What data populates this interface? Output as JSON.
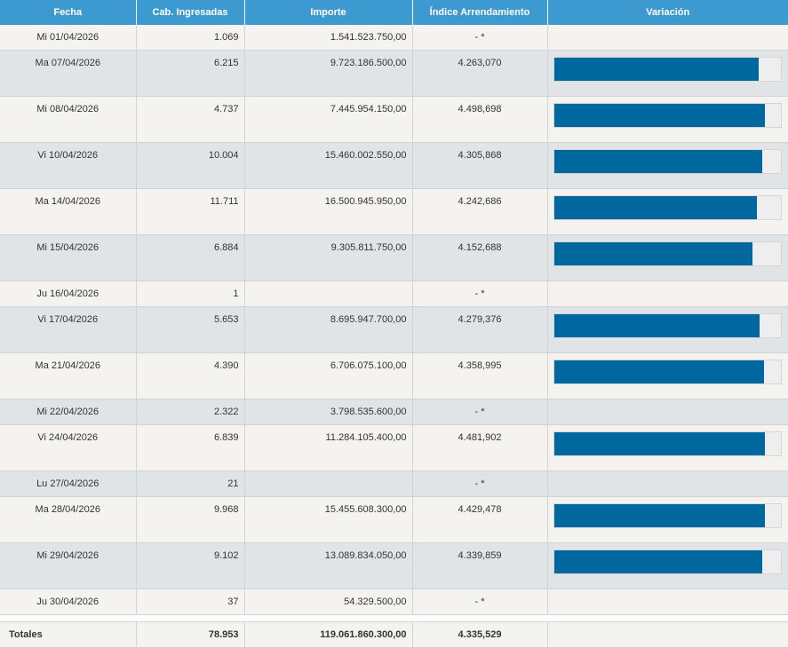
{
  "table": {
    "headers": [
      "Fecha",
      "Cab. Ingresadas",
      "Importe",
      "Índice Arrendamiento",
      "Variación"
    ],
    "rows": [
      {
        "fecha": "Mi 01/04/2026",
        "cabezas": "1.069",
        "importe": "1.541.523.750,00",
        "indice": "- *",
        "variacion_pct": null
      },
      {
        "fecha": "Ma 07/04/2026",
        "cabezas": "6.215",
        "importe": "9.723.186.500,00",
        "indice": "4.263,070",
        "variacion_pct": 90.5
      },
      {
        "fecha": "Mi 08/04/2026",
        "cabezas": "4.737",
        "importe": "7.445.954.150,00",
        "indice": "4.498,698",
        "variacion_pct": 93.3
      },
      {
        "fecha": "Vi 10/04/2026",
        "cabezas": "10.004",
        "importe": "15.460.002.550,00",
        "indice": "4.305,868",
        "variacion_pct": 91.8
      },
      {
        "fecha": "Ma 14/04/2026",
        "cabezas": "11.711",
        "importe": "16.500.945.950,00",
        "indice": "4.242,686",
        "variacion_pct": 89.8
      },
      {
        "fecha": "Mi 15/04/2026",
        "cabezas": "6.884",
        "importe": "9.305.811.750,00",
        "indice": "4.152,688",
        "variacion_pct": 87.5
      },
      {
        "fecha": "Ju 16/04/2026",
        "cabezas": "1",
        "importe": "",
        "indice": "- *",
        "variacion_pct": null
      },
      {
        "fecha": "Vi 17/04/2026",
        "cabezas": "5.653",
        "importe": "8.695.947.700,00",
        "indice": "4.279,376",
        "variacion_pct": 90.7
      },
      {
        "fecha": "Ma 21/04/2026",
        "cabezas": "4.390",
        "importe": "6.706.075.100,00",
        "indice": "4.358,995",
        "variacion_pct": 92.6
      },
      {
        "fecha": "Mi 22/04/2026",
        "cabezas": "2.322",
        "importe": "3.798.535.600,00",
        "indice": "- *",
        "variacion_pct": null
      },
      {
        "fecha": "Vi 24/04/2026",
        "cabezas": "6.839",
        "importe": "11.284.105.400,00",
        "indice": "4.481,902",
        "variacion_pct": 93.3
      },
      {
        "fecha": "Lu 27/04/2026",
        "cabezas": "21",
        "importe": "",
        "indice": "- *",
        "variacion_pct": null
      },
      {
        "fecha": "Ma 28/04/2026",
        "cabezas": "9.968",
        "importe": "15.455.608.300,00",
        "indice": "4.429,478",
        "variacion_pct": 93.3
      },
      {
        "fecha": "Mi 29/04/2026",
        "cabezas": "9.102",
        "importe": "13.089.834.050,00",
        "indice": "4.339,859",
        "variacion_pct": 91.8
      },
      {
        "fecha": "Ju 30/04/2026",
        "cabezas": "37",
        "importe": "54.329.500,00",
        "indice": "- *",
        "variacion_pct": null
      }
    ],
    "totals": {
      "label": "Totales",
      "cabezas": "78.953",
      "importe": "119.061.860.300,00",
      "indice": "4.335,529"
    }
  },
  "colors": {
    "header_bg": "#3d9ad1",
    "bar_fill": "#00679f",
    "row_odd": "#f4f3ef",
    "row_even": "#e1e4e7"
  }
}
